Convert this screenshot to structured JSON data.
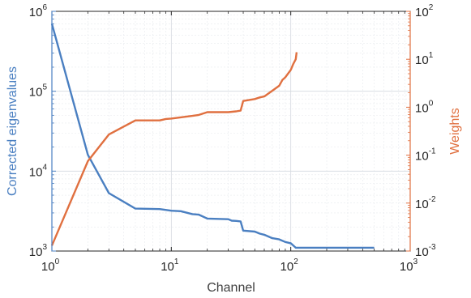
{
  "chart_data": {
    "type": "line",
    "x_scale": "log",
    "xlim": [
      1,
      1000
    ],
    "xlabel": "Channel",
    "left_axis": {
      "label": "Corrected eigenvalues",
      "scale": "log",
      "ylim": [
        1000,
        1000000
      ],
      "color": "#4a7fc1",
      "ticks": [
        "10^3",
        "10^4",
        "10^5",
        "10^6"
      ]
    },
    "right_axis": {
      "label": "Weights",
      "scale": "log",
      "ylim": [
        0.001,
        100
      ],
      "color": "#e07040",
      "ticks": [
        "10^-3",
        "10^-2",
        "10^-1",
        "10^0",
        "10^1",
        "10^2"
      ]
    },
    "x_ticks": [
      "10^0",
      "10^1",
      "10^2",
      "10^3"
    ],
    "grid": true,
    "series": [
      {
        "axis": "left",
        "color": "#4a7fc1",
        "x": [
          1,
          2,
          3,
          5,
          8,
          10,
          12,
          15,
          17,
          20,
          30,
          32,
          35,
          38,
          40,
          50,
          55,
          60,
          70,
          80,
          90,
          100,
          110,
          500
        ],
        "y": [
          700000,
          16000,
          5300,
          3400,
          3350,
          3200,
          3150,
          2900,
          2850,
          2550,
          2500,
          2400,
          2380,
          2350,
          1800,
          1750,
          1650,
          1600,
          1450,
          1400,
          1300,
          1250,
          1100,
          1100
        ]
      },
      {
        "axis": "right",
        "color": "#e07040",
        "x": [
          1,
          2,
          3,
          5,
          8,
          9,
          10,
          15,
          17,
          20,
          30,
          35,
          38,
          40,
          50,
          55,
          60,
          70,
          80,
          85,
          90,
          100,
          105,
          110,
          112
        ],
        "y": [
          0.0013,
          0.075,
          0.27,
          0.53,
          0.53,
          0.57,
          0.58,
          0.66,
          0.69,
          0.79,
          0.79,
          0.82,
          0.85,
          1.35,
          1.48,
          1.6,
          1.68,
          2.2,
          2.8,
          3.7,
          4.2,
          6.0,
          8.0,
          10.0,
          14.0
        ]
      }
    ]
  }
}
